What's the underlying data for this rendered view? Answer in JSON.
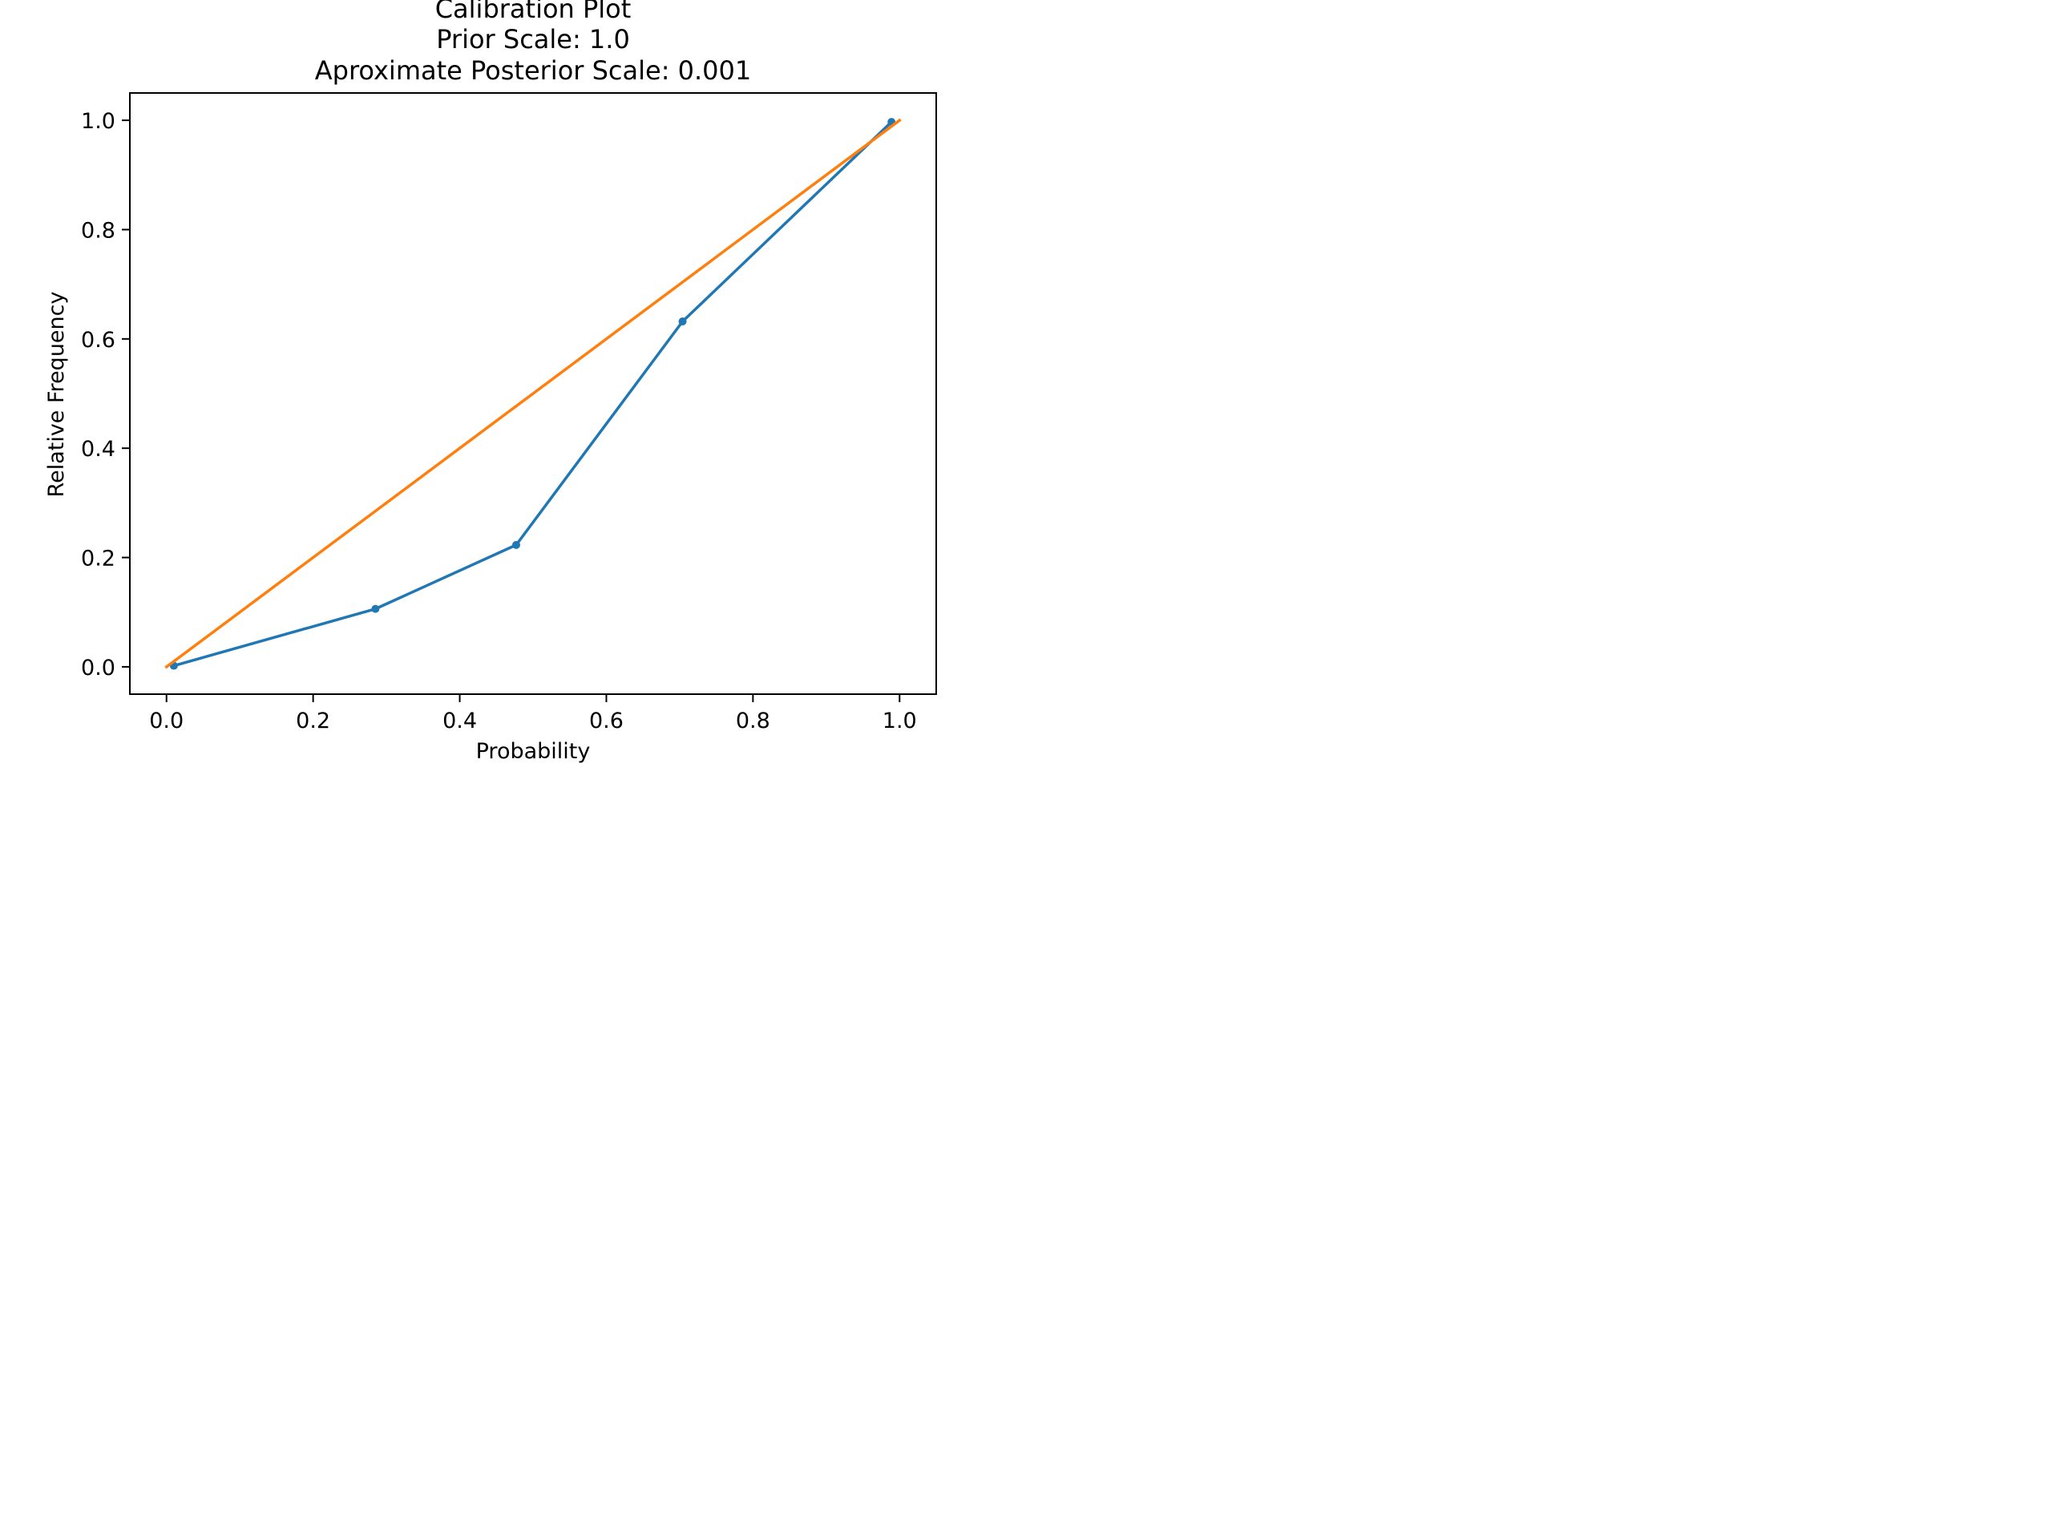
{
  "chart_data": {
    "type": "line",
    "title_lines": [
      "Calibration Plot",
      "Prior Scale: 1.0",
      "Aproximate Posterior Scale: 0.001"
    ],
    "xlabel": "Probability",
    "ylabel": "Relative Frequency",
    "xlim": [
      -0.05,
      1.05
    ],
    "ylim": [
      -0.05,
      1.05
    ],
    "xticks": [
      0.0,
      0.2,
      0.4,
      0.6,
      0.8,
      1.0
    ],
    "xtick_labels": [
      "0.0",
      "0.2",
      "0.4",
      "0.6",
      "0.8",
      "1.0"
    ],
    "yticks": [
      0.0,
      0.2,
      0.4,
      0.6,
      0.8,
      1.0
    ],
    "ytick_labels": [
      "0.0",
      "0.2",
      "0.4",
      "0.6",
      "0.8",
      "1.0"
    ],
    "grid": false,
    "legend": "none",
    "series": [
      {
        "color": "#1f77b4",
        "marker": true,
        "x": [
          0.01,
          0.285,
          0.477,
          0.704,
          0.989
        ],
        "y": [
          0.002,
          0.106,
          0.223,
          0.632,
          0.997
        ]
      },
      {
        "color": "#ff7f0e",
        "marker": false,
        "x": [
          0.0,
          1.0
        ],
        "y": [
          0.0,
          1.0
        ]
      }
    ]
  }
}
